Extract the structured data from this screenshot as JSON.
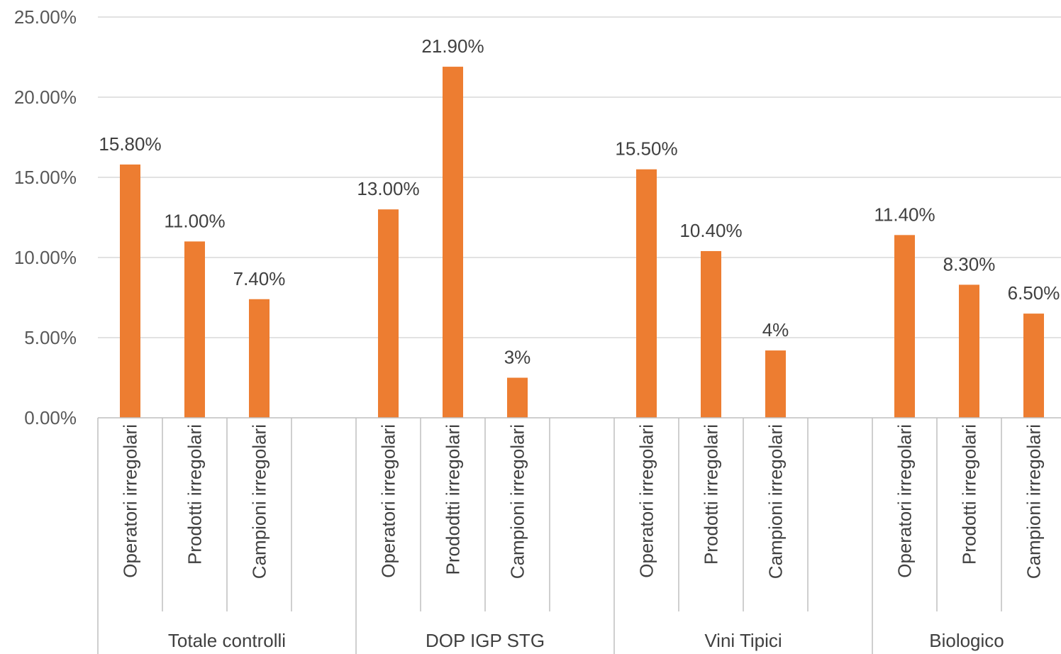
{
  "chart_data": {
    "type": "bar",
    "title": "",
    "xlabel": "",
    "ylabel": "",
    "ylim": [
      0,
      25
    ],
    "y_ticks": [
      "0.00%",
      "5.00%",
      "10.00%",
      "15.00%",
      "20.00%",
      "25.00%"
    ],
    "grid": true,
    "legend": "none",
    "bar_color": "#ED7D31",
    "groups": [
      {
        "name": "Totale controlli",
        "categories": [
          "Operatori irregolari",
          "Prodotti irregolari",
          "Campioni irregolari",
          ""
        ],
        "values": [
          15.8,
          11.0,
          7.4,
          null
        ],
        "labels": [
          "15.80%",
          "11.00%",
          "7.40%",
          ""
        ]
      },
      {
        "name": "DOP IGP STG",
        "categories": [
          "Operatori irregolari",
          "Prododtti irregolari",
          "Campioni irregolari",
          ""
        ],
        "values": [
          13.0,
          21.9,
          2.5,
          null
        ],
        "labels": [
          "13.00%",
          "21.90%",
          "3%",
          ""
        ]
      },
      {
        "name": "Vini Tipici",
        "categories": [
          "Operatori irregolari",
          "Prodotti irregolari",
          "Campioni irregolari",
          ""
        ],
        "values": [
          15.5,
          10.4,
          4.2,
          null
        ],
        "labels": [
          "15.50%",
          "10.40%",
          "4%",
          ""
        ]
      },
      {
        "name": "Biologico",
        "categories": [
          "Operatori irregolari",
          "Prodotti irregolari",
          "Campioni irregolari"
        ],
        "values": [
          11.4,
          8.3,
          6.5
        ],
        "labels": [
          "11.40%",
          "8.30%",
          "6.50%"
        ]
      }
    ]
  }
}
